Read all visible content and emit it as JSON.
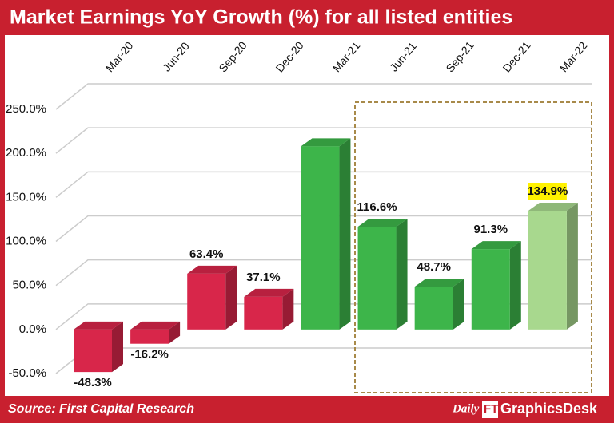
{
  "chart_data": {
    "type": "bar3d",
    "title": "Market Earnings YoY Growth (%) for all listed entities",
    "source": "Source: First Capital Research",
    "brand": [
      "Daily",
      "FT",
      "GraphicsDesk"
    ],
    "categories": [
      "Mar-20",
      "Jun-20",
      "Sep-20",
      "Dec-20",
      "Mar-21",
      "Jun-21",
      "Sep-21",
      "Dec-21",
      "Mar-22"
    ],
    "values": [
      -48.3,
      -16.2,
      63.4,
      37.1,
      208,
      116.6,
      48.7,
      91.3,
      134.9
    ],
    "value_labels": [
      "-48.3%",
      "-16.2%",
      "63.4%",
      "37.1%",
      null,
      "116.6%",
      "48.7%",
      "91.3%",
      "134.9%"
    ],
    "colors": [
      "#d8264a",
      "#d8264a",
      "#d8264a",
      "#d8264a",
      "#3db54a",
      "#3db54a",
      "#3db54a",
      "#3db54a",
      "#a8d88e"
    ],
    "highlight_index": 8,
    "highlight_color": "#fff200",
    "ylim": [
      -50,
      250
    ],
    "yticks": [
      {
        "value": -50,
        "label": "-50.0%"
      },
      {
        "value": 0,
        "label": "0.0%"
      },
      {
        "value": 50,
        "label": "50.0%"
      },
      {
        "value": 100,
        "label": "100.0%"
      },
      {
        "value": 150,
        "label": "150.0%"
      },
      {
        "value": 200,
        "label": "200.0%"
      },
      {
        "value": 250,
        "label": "250.0%"
      }
    ],
    "grid": true
  }
}
